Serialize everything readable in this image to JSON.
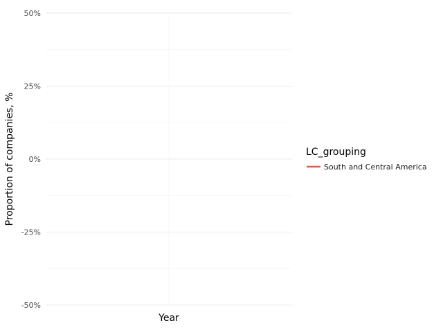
{
  "chart_data": {
    "type": "line",
    "title": "",
    "xlabel": "Year",
    "ylabel": "Proportion of companies, %",
    "ylim": [
      -50,
      50
    ],
    "y_ticks": [
      {
        "value": 50,
        "label": "50%"
      },
      {
        "value": 25,
        "label": "25%"
      },
      {
        "value": 0,
        "label": "0%"
      },
      {
        "value": -25,
        "label": "-25%"
      },
      {
        "value": -50,
        "label": "-50%"
      }
    ],
    "y_minor_ticks": [
      37.5,
      12.5,
      -12.5,
      -37.5
    ],
    "grid": true,
    "legend": {
      "title": "LC_grouping",
      "position": "right"
    },
    "series": [
      {
        "name": "South and Central America",
        "color": "#e05b4b",
        "x": [],
        "values": []
      }
    ]
  }
}
